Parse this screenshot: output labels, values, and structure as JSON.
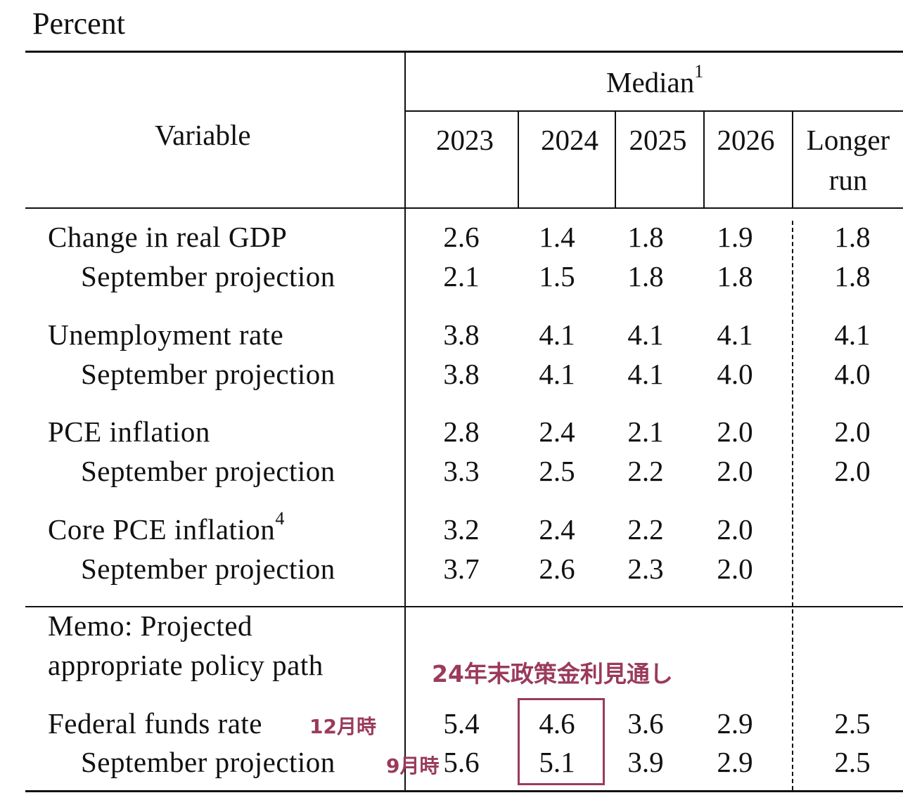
{
  "title": "Percent",
  "header": {
    "variable": "Variable",
    "median": "Median",
    "median_sup": "1",
    "years": [
      "2023",
      "2024",
      "2025",
      "2026"
    ],
    "longer_run_line1": "Longer",
    "longer_run_line2": "run"
  },
  "rows": [
    {
      "label": "Change in real GDP",
      "values": [
        "2.6",
        "1.4",
        "1.8",
        "1.9",
        "1.8"
      ]
    },
    {
      "label": "September projection",
      "values": [
        "2.1",
        "1.5",
        "1.8",
        "1.8",
        "1.8"
      ]
    },
    {
      "label": "Unemployment rate",
      "values": [
        "3.8",
        "4.1",
        "4.1",
        "4.1",
        "4.1"
      ]
    },
    {
      "label": "September projection",
      "values": [
        "3.8",
        "4.1",
        "4.1",
        "4.0",
        "4.0"
      ]
    },
    {
      "label": "PCE inflation",
      "values": [
        "2.8",
        "2.4",
        "2.1",
        "2.0",
        "2.0"
      ]
    },
    {
      "label": "September projection",
      "values": [
        "3.3",
        "2.5",
        "2.2",
        "2.0",
        "2.0"
      ]
    },
    {
      "label": "Core PCE inflation",
      "sup": "4",
      "values": [
        "3.2",
        "2.4",
        "2.2",
        "2.0",
        ""
      ]
    },
    {
      "label": "September projection",
      "values": [
        "3.7",
        "2.6",
        "2.3",
        "2.0",
        ""
      ]
    }
  ],
  "memo": {
    "line1": "Memo: Projected",
    "line2": "appropriate policy path"
  },
  "ffr_rows": [
    {
      "label": "Federal funds rate",
      "values": [
        "5.4",
        "4.6",
        "3.6",
        "2.9",
        "2.5"
      ]
    },
    {
      "label": "September projection",
      "values": [
        "5.6",
        "5.1",
        "3.9",
        "2.9",
        "2.5"
      ]
    }
  ],
  "annotations": {
    "outlook": "24年末政策金利見通し",
    "december": "12月時",
    "september": "9月時",
    "color": "#9a3a5c"
  }
}
